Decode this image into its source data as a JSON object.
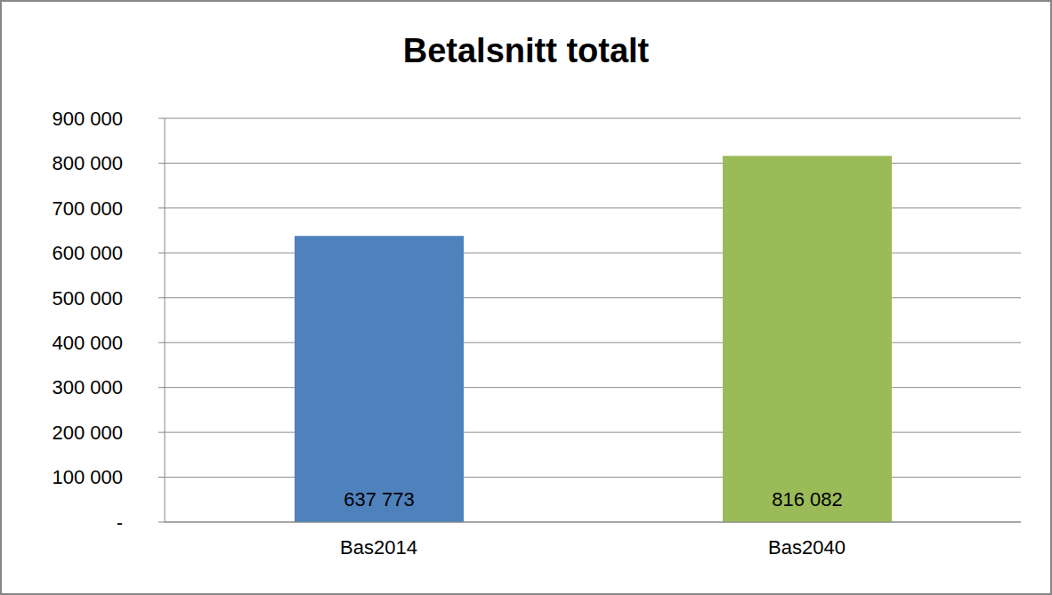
{
  "chart_data": {
    "type": "bar",
    "title": "Betalsnitt totalt",
    "categories": [
      "Bas2014",
      "Bas2040"
    ],
    "values": [
      637773,
      816082
    ],
    "value_labels": [
      "637 773",
      "816 082"
    ],
    "colors": [
      "#4f81bd",
      "#9bbb59"
    ],
    "ylim": [
      0,
      900000
    ],
    "yticks": [
      {
        "value": 0,
        "label": "-"
      },
      {
        "value": 100000,
        "label": "100 000"
      },
      {
        "value": 200000,
        "label": "200 000"
      },
      {
        "value": 300000,
        "label": "300 000"
      },
      {
        "value": 400000,
        "label": "400 000"
      },
      {
        "value": 500000,
        "label": "500 000"
      },
      {
        "value": 600000,
        "label": "600 000"
      },
      {
        "value": 700000,
        "label": "700 000"
      },
      {
        "value": 800000,
        "label": "800 000"
      },
      {
        "value": 900000,
        "label": "900 000"
      }
    ],
    "grid": true,
    "data_labels": true
  }
}
